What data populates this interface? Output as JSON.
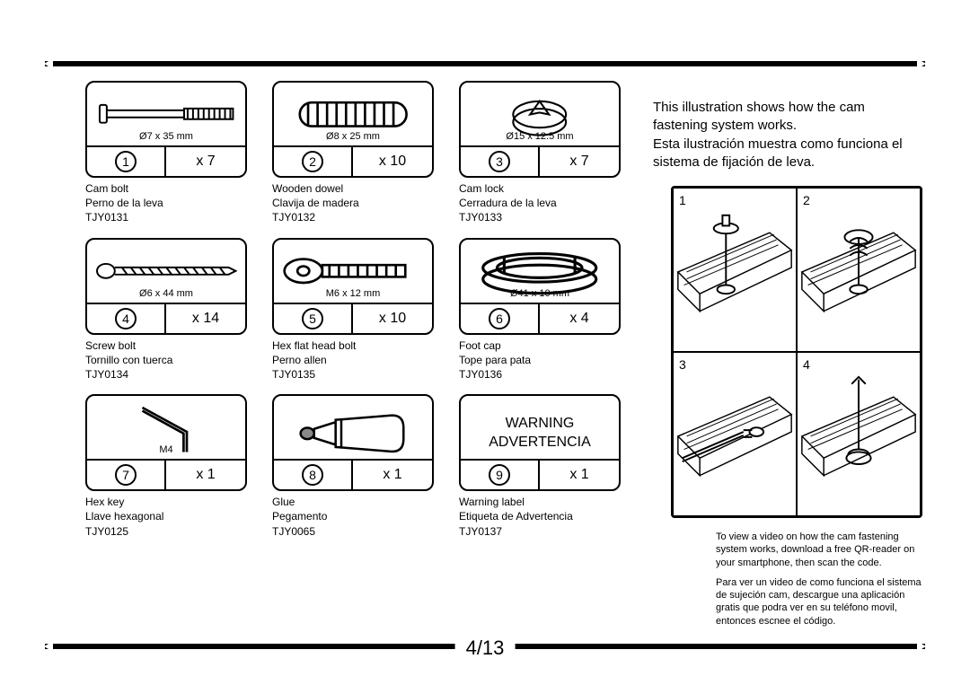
{
  "page_number": "4/13",
  "intro": {
    "en": "This illustration shows how the cam fastening system works.",
    "es": "Esta ilustración muestra como funciona el sistema de fijación de leva."
  },
  "note": {
    "en": "To view a video on how the cam fastening system works, download a free QR-reader on your smartphone, then scan the code.",
    "es": "Para ver un video de como funciona el sistema de sujeción cam, descargue una aplicación gratis que podra ver en su teléfono movil, entonces escnee  el código."
  },
  "cam_steps": [
    "1",
    "2",
    "3",
    "4"
  ],
  "parts": [
    {
      "num": "1",
      "qty": "x 7",
      "dim": "Ø7 x 35 mm",
      "name_en": "Cam bolt",
      "name_es": "Perno de la leva",
      "sku": "TJY0131",
      "icon": "cambolt"
    },
    {
      "num": "2",
      "qty": "x 10",
      "dim": "Ø8 x 25 mm",
      "name_en": "Wooden dowel",
      "name_es": "Clavija de madera",
      "sku": "TJY0132",
      "icon": "dowel"
    },
    {
      "num": "3",
      "qty": "x 7",
      "dim": "Ø15 x 12.5 mm",
      "name_en": "Cam lock",
      "name_es": "Cerradura de la leva",
      "sku": "TJY0133",
      "icon": "camlock"
    },
    {
      "num": "4",
      "qty": "x 14",
      "dim": "Ø6 x 44 mm",
      "name_en": "Screw bolt",
      "name_es": "Tornillo con tuerca",
      "sku": "TJY0134",
      "icon": "screw"
    },
    {
      "num": "5",
      "qty": "x 10",
      "dim": "M6 x 12 mm",
      "name_en": "Hex flat head bolt",
      "name_es": "Perno allen",
      "sku": "TJY0135",
      "icon": "hexbolt"
    },
    {
      "num": "6",
      "qty": "x 4",
      "dim": "Ø41 x 10 mm",
      "name_en": "Foot cap",
      "name_es": "Tope para pata",
      "sku": "TJY0136",
      "icon": "footcap"
    },
    {
      "num": "7",
      "qty": "x 1",
      "dim": "M4",
      "name_en": "Hex key",
      "name_es": "Llave hexagonal",
      "sku": "TJY0125",
      "icon": "hexkey"
    },
    {
      "num": "8",
      "qty": "x 1",
      "dim": "",
      "name_en": "Glue",
      "name_es": "Pegamento",
      "sku": "TJY0065",
      "icon": "glue"
    },
    {
      "num": "9",
      "qty": "x 1",
      "dim": "",
      "name_en": "Warning label",
      "name_es": "Etiqueta de Advertencia",
      "sku": "TJY0137",
      "icon": "warning",
      "warn_en": "WARNING",
      "warn_es": "ADVERTENCIA"
    }
  ],
  "colors": {
    "stroke": "#000000",
    "bg": "#ffffff",
    "hatch": "#000000"
  }
}
